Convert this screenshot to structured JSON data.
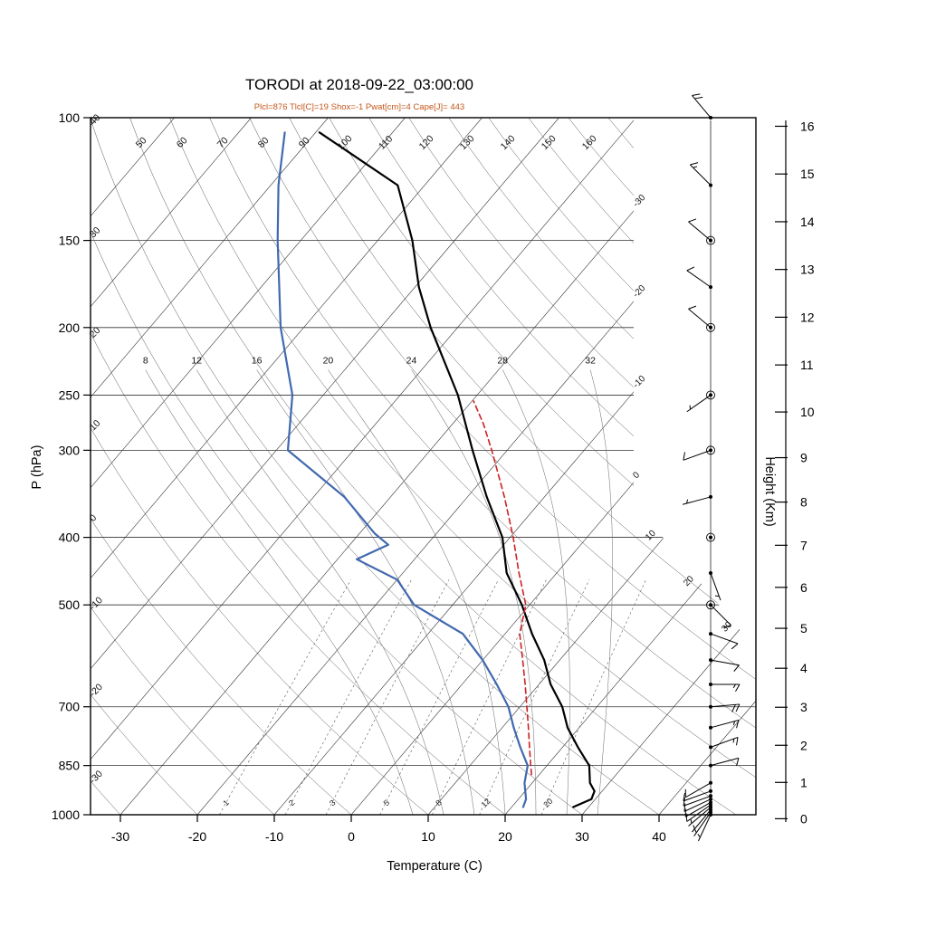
{
  "title": "TORODI at 2018-09-22_03:00:00",
  "subtitle": "Plcl=876 Tlcl[C]=19 Shox=-1 Pwat[cm]=4 Cape[J]= 443",
  "colors": {
    "subtitle": "#c4571b",
    "temperature_curve": "#000000",
    "dewpoint_curve": "#4169b0",
    "parcel_curve": "#cc2222",
    "grid_dark": "#333333",
    "grid_mid": "#555555",
    "grid_light": "#777777"
  },
  "axes": {
    "x_label": "Temperature (C)",
    "y_label": "P (hPa)",
    "right_label": "Height (Km)",
    "pressure_ticks": [
      100,
      150,
      200,
      250,
      300,
      400,
      500,
      700,
      850,
      1000
    ],
    "temperature_ticks": [
      -30,
      -20,
      -10,
      0,
      10,
      20,
      30,
      40
    ],
    "height_ticks_km": [
      0,
      1,
      2,
      3,
      4,
      5,
      6,
      7,
      8,
      9,
      10,
      11,
      12,
      13,
      14,
      15,
      16
    ]
  },
  "background": {
    "isotherm_range": [
      -110,
      40
    ],
    "isotherm_step": 10,
    "isotherm_right_edge_labels": [
      -30,
      -20,
      -10,
      0
    ],
    "isotherm_diagonal_labels": [
      10,
      20,
      30
    ],
    "dry_adiabat_range": [
      -30,
      170
    ],
    "dry_adiabat_step": 10,
    "dry_adiabat_top_labels": [
      50,
      60,
      70,
      80,
      90,
      100,
      110,
      120,
      130,
      140,
      150,
      160
    ],
    "dry_adiabat_left_labels": [
      40,
      30,
      20,
      10,
      0,
      -10,
      -20,
      -30
    ],
    "moist_adiabat_values": [
      8,
      12,
      16,
      20,
      24,
      28,
      32
    ],
    "mixing_ratio_values": [
      1,
      2,
      3,
      5,
      8,
      12,
      20
    ]
  },
  "chart_data": {
    "type": "line",
    "title": "TORODI at 2018-09-22_03:00:00",
    "station": "TORODI",
    "time": "2018-09-22_03:00:00",
    "x_axis": {
      "label": "Temperature (C)",
      "range": [
        -35,
        45
      ],
      "units": "C"
    },
    "y_axis": {
      "label": "P (hPa)",
      "scale": "log",
      "range": [
        1050,
        100
      ],
      "units": "hPa"
    },
    "right_axis": {
      "label": "Height (Km)",
      "range": [
        0,
        16
      ],
      "units": "km"
    },
    "indices": {
      "Plcl": 876,
      "Tlcl_C": 19,
      "Shox": -1,
      "Pwat_cm": 4,
      "Cape_J": 443
    },
    "series": [
      {
        "name": "temperature",
        "color": "#000000",
        "style": "solid",
        "points": [
          [
            975,
            28.0
          ],
          [
            950,
            29.5
          ],
          [
            925,
            29.0
          ],
          [
            900,
            27.5
          ],
          [
            850,
            25.5
          ],
          [
            800,
            22.0
          ],
          [
            750,
            18.5
          ],
          [
            700,
            15.5
          ],
          [
            650,
            11.5
          ],
          [
            600,
            8.0
          ],
          [
            550,
            3.5
          ],
          [
            500,
            -1.0
          ],
          [
            450,
            -6.5
          ],
          [
            400,
            -11.0
          ],
          [
            350,
            -17.5
          ],
          [
            300,
            -24.5
          ],
          [
            250,
            -32.5
          ],
          [
            200,
            -43.5
          ],
          [
            175,
            -49.5
          ],
          [
            150,
            -55.5
          ],
          [
            125,
            -63.5
          ],
          [
            105,
            -79.5
          ]
        ]
      },
      {
        "name": "dewpoint",
        "color": "#4169b0",
        "style": "solid",
        "points": [
          [
            975,
            21.5
          ],
          [
            950,
            21.0
          ],
          [
            925,
            20.0
          ],
          [
            900,
            19.0
          ],
          [
            850,
            17.5
          ],
          [
            800,
            14.5
          ],
          [
            750,
            11.5
          ],
          [
            700,
            8.5
          ],
          [
            650,
            4.5
          ],
          [
            600,
            0.0
          ],
          [
            550,
            -5.5
          ],
          [
            500,
            -15.0
          ],
          [
            460,
            -20.0
          ],
          [
            430,
            -27.5
          ],
          [
            410,
            -25.0
          ],
          [
            395,
            -28.0
          ],
          [
            350,
            -36.0
          ],
          [
            300,
            -48.5
          ],
          [
            250,
            -54.0
          ],
          [
            200,
            -63.0
          ],
          [
            150,
            -73.0
          ],
          [
            125,
            -79.0
          ],
          [
            105,
            -84.0
          ]
        ]
      },
      {
        "name": "parcel",
        "color": "#cc2222",
        "style": "dashed",
        "points": [
          [
            876,
            19.0
          ],
          [
            850,
            17.9
          ],
          [
            800,
            15.7
          ],
          [
            750,
            13.4
          ],
          [
            700,
            10.9
          ],
          [
            650,
            8.2
          ],
          [
            600,
            5.2
          ],
          [
            550,
            1.9
          ],
          [
            500,
            -0.5
          ],
          [
            450,
            -4.9
          ],
          [
            400,
            -9.6
          ],
          [
            350,
            -15.2
          ],
          [
            300,
            -22.0
          ],
          [
            275,
            -26.0
          ],
          [
            255,
            -29.8
          ]
        ]
      }
    ],
    "wind_barbs_kt": [
      {
        "p": 1000,
        "spd": 4,
        "dir": 205
      },
      {
        "p": 992,
        "spd": 5,
        "dir": 215
      },
      {
        "p": 984,
        "spd": 6,
        "dir": 220
      },
      {
        "p": 976,
        "spd": 7,
        "dir": 230
      },
      {
        "p": 968,
        "spd": 8,
        "dir": 235
      },
      {
        "p": 960,
        "spd": 9,
        "dir": 240
      },
      {
        "p": 950,
        "spd": 10,
        "dir": 245
      },
      {
        "p": 940,
        "spd": 10,
        "dir": 250
      },
      {
        "p": 925,
        "spd": 12,
        "dir": 250
      },
      {
        "p": 900,
        "spd": 10,
        "dir": 240
      },
      {
        "p": 850,
        "spd": 10,
        "dir": 75
      },
      {
        "p": 800,
        "spd": 15,
        "dir": 70
      },
      {
        "p": 750,
        "spd": 15,
        "dir": 75
      },
      {
        "p": 700,
        "spd": 20,
        "dir": 85
      },
      {
        "p": 650,
        "spd": 15,
        "dir": 90
      },
      {
        "p": 600,
        "spd": 12,
        "dir": 100
      },
      {
        "p": 550,
        "spd": 10,
        "dir": 110
      },
      {
        "p": 500,
        "spd": 8,
        "dir": 135,
        "circle": true
      },
      {
        "p": 450,
        "spd": 5,
        "dir": 160
      },
      {
        "p": 400,
        "spd": 2,
        "dir": 0,
        "circle": true
      },
      {
        "p": 350,
        "spd": 5,
        "dir": 255
      },
      {
        "p": 300,
        "spd": 8,
        "dir": 250,
        "circle": true
      },
      {
        "p": 250,
        "spd": 6,
        "dir": 235,
        "circle": true
      },
      {
        "p": 200,
        "spd": 8,
        "dir": 310,
        "circle": true
      },
      {
        "p": 175,
        "spd": 10,
        "dir": 305
      },
      {
        "p": 150,
        "spd": 12,
        "dir": 310,
        "circle": true
      },
      {
        "p": 125,
        "spd": 15,
        "dir": 315
      },
      {
        "p": 100,
        "spd": 20,
        "dir": 320
      }
    ]
  }
}
